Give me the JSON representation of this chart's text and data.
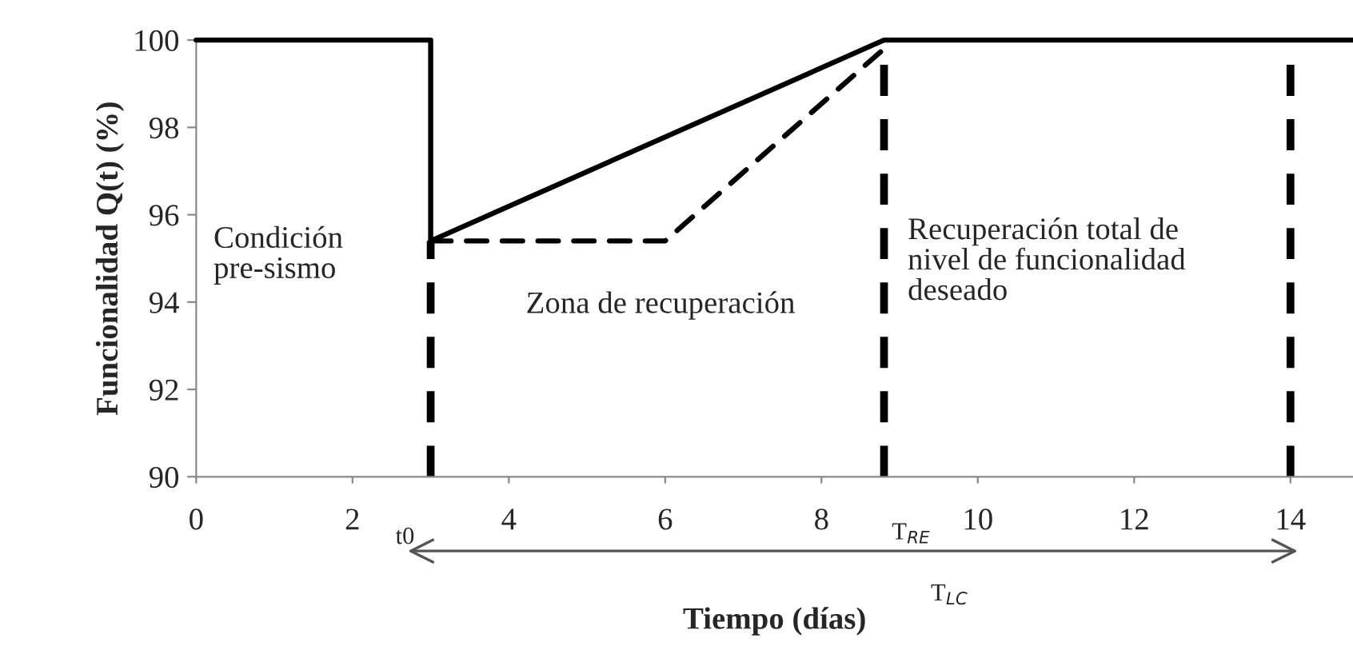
{
  "chart_data": {
    "type": "line",
    "xlabel": "Tiempo (días)",
    "ylabel": "Funcionalidad Q(t) (%)",
    "xlim": [
      0,
      14.8
    ],
    "ylim": [
      90,
      100
    ],
    "xticks": [
      0,
      2,
      4,
      6,
      8,
      10,
      12,
      14
    ],
    "yticks": [
      90,
      92,
      94,
      96,
      98,
      100
    ],
    "legend": false,
    "marker": "none",
    "series": [
      {
        "color": "#000000",
        "line_style": "solid",
        "x": [
          0,
          3,
          3,
          8.8,
          14.8
        ],
        "values": [
          100,
          100,
          95.4,
          100,
          100
        ]
      },
      {
        "color": "#000000",
        "line_style": "dashed",
        "x": [
          3,
          6,
          8.8
        ],
        "values": [
          95.4,
          95.4,
          99.8
        ]
      }
    ],
    "ref_lines": [
      {
        "axis": "x",
        "value": 3,
        "label": "t0",
        "color": "#000000",
        "line_style": "dashed"
      },
      {
        "axis": "x",
        "value": 8.8,
        "label": "T$_{RE}$",
        "color": "#000000",
        "line_style": "dashed"
      },
      {
        "axis": "x",
        "value": 14,
        "color": "#000000",
        "line_style": "dashed"
      }
    ],
    "annotations": [
      "Condición\npre-sismo",
      "Zona de recuperación",
      "Recuperación total de\nnivel de funcionalidad\ndeseado",
      "T$_{LC}$"
    ]
  }
}
